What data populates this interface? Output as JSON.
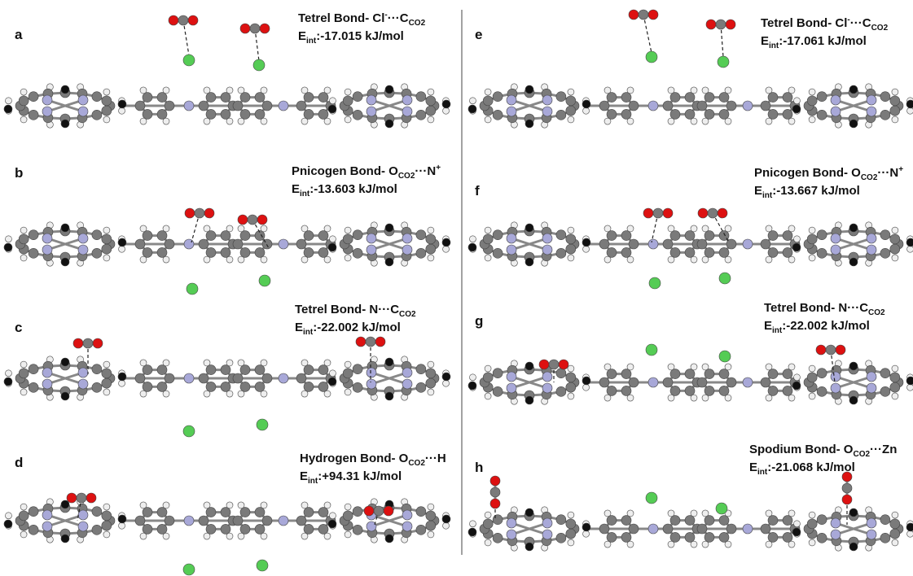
{
  "panels": [
    {
      "label": "a",
      "bond": [
        {
          "text": "Tetrel Bond- Cl"
        },
        {
          "text": "-",
          "shift": "sup"
        },
        {
          "text": "···C"
        },
        {
          "text": "CO2",
          "shift": "sub"
        }
      ],
      "energy": [
        {
          "text": "E"
        },
        {
          "text": "int",
          "shift": "sub"
        },
        {
          "text": ":-17.015 kJ/mol"
        }
      ]
    },
    {
      "label": "b",
      "bond": [
        {
          "text": "Pnicogen Bond- O"
        },
        {
          "text": "CO2",
          "shift": "sub"
        },
        {
          "text": "···N"
        },
        {
          "text": "+",
          "shift": "sup"
        }
      ],
      "energy": [
        {
          "text": "E"
        },
        {
          "text": "int",
          "shift": "sub"
        },
        {
          "text": ":-13.603 kJ/mol"
        }
      ]
    },
    {
      "label": "c",
      "bond": [
        {
          "text": "Tetrel Bond- N···C"
        },
        {
          "text": "CO2",
          "shift": "sub"
        }
      ],
      "energy": [
        {
          "text": "E"
        },
        {
          "text": "int",
          "shift": "sub"
        },
        {
          "text": ":-22.002 kJ/mol"
        }
      ]
    },
    {
      "label": "d",
      "bond": [
        {
          "text": "Hydrogen Bond- O"
        },
        {
          "text": "CO2",
          "shift": "sub"
        },
        {
          "text": "···H"
        }
      ],
      "energy": [
        {
          "text": "E"
        },
        {
          "text": "int",
          "shift": "sub"
        },
        {
          "text": ":+94.31 kJ/mol"
        }
      ]
    },
    {
      "label": "e",
      "bond": [
        {
          "text": "Tetrel Bond- Cl"
        },
        {
          "text": "-",
          "shift": "sup"
        },
        {
          "text": "···C"
        },
        {
          "text": "CO2",
          "shift": "sub"
        }
      ],
      "energy": [
        {
          "text": "E"
        },
        {
          "text": "int",
          "shift": "sub"
        },
        {
          "text": ":-17.061 kJ/mol"
        }
      ]
    },
    {
      "label": "f",
      "bond": [
        {
          "text": "Pnicogen Bond- O"
        },
        {
          "text": "CO2",
          "shift": "sub"
        },
        {
          "text": "···N"
        },
        {
          "text": "+",
          "shift": "sup"
        }
      ],
      "energy": [
        {
          "text": "E"
        },
        {
          "text": "int",
          "shift": "sub"
        },
        {
          "text": ":-13.667 kJ/mol"
        }
      ]
    },
    {
      "label": "g",
      "bond": [
        {
          "text": "Tetrel Bond- N···C"
        },
        {
          "text": "CO2",
          "shift": "sub"
        }
      ],
      "energy": [
        {
          "text": "E"
        },
        {
          "text": "int",
          "shift": "sub"
        },
        {
          "text": ":-22.002 kJ/mol"
        }
      ]
    },
    {
      "label": "h",
      "bond": [
        {
          "text": "Spodium Bond- O"
        },
        {
          "text": "CO2",
          "shift": "sub"
        },
        {
          "text": "···Zn"
        }
      ],
      "energy": [
        {
          "text": "E"
        },
        {
          "text": "int",
          "shift": "sub"
        },
        {
          "text": ":-21.068 kJ/mol"
        }
      ]
    }
  ]
}
